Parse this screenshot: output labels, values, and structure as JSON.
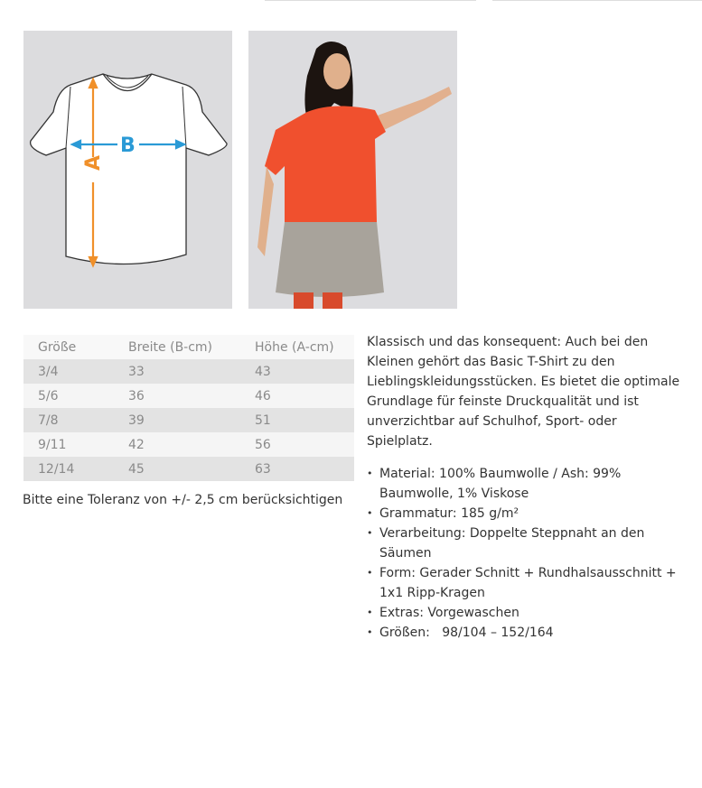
{
  "size_table": {
    "headers": [
      "Größe",
      "Breite (B-cm)",
      "Höhe (A-cm)"
    ],
    "rows": [
      [
        "3/4",
        "33",
        "43"
      ],
      [
        "5/6",
        "36",
        "46"
      ],
      [
        "7/8",
        "39",
        "51"
      ],
      [
        "9/11",
        "42",
        "56"
      ],
      [
        "12/14",
        "45",
        "63"
      ]
    ]
  },
  "diagram": {
    "label_a": "A",
    "label_b": "B",
    "color_a": "#f0902a",
    "color_b": "#2a9ad6"
  },
  "tolerance_note": "Bitte eine Toleranz von +/- 2,5 cm berücksichtigen",
  "description": "Klassisch und das konsequent: Auch bei den Kleinen gehört das Basic T-Shirt zu den Lieblingskleidungsstücken. Es bietet die optimale Grundlage für feinste Druckqualität und ist unverzichtbar auf Schulhof, Sport- oder Spielplatz.",
  "features": [
    "Material: 100% Baumwolle / Ash: 99% Baumwolle, 1% Viskose",
    "Grammatur: 185 g/m²",
    "Verarbeitung: Doppelte Steppnaht an den Säumen",
    "Form: Gerader Schnitt + Rundhalsausschnitt + 1x1 Ripp-Kragen",
    "Extras: Vorgewaschen",
    "Größen:   98/104 – 152/164"
  ]
}
